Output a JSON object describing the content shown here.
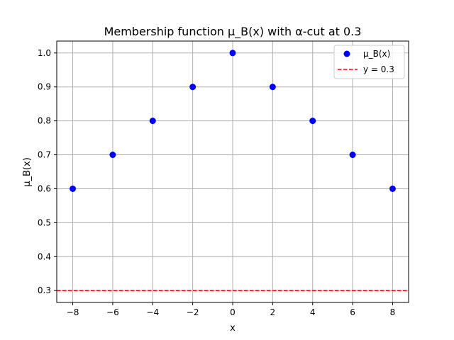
{
  "chart_data": {
    "type": "scatter",
    "title": "Membership function μ_B(x) with α-cut at 0.3",
    "xlabel": "x",
    "ylabel": "μ_B(x)",
    "xlim": [
      -8.8,
      8.8
    ],
    "ylim": [
      0.265,
      1.035
    ],
    "x_ticks": [
      -8,
      -6,
      -4,
      -2,
      0,
      2,
      4,
      6,
      8
    ],
    "x_tick_labels": [
      "−8",
      "−6",
      "−4",
      "−2",
      "0",
      "2",
      "4",
      "6",
      "8"
    ],
    "y_ticks": [
      0.3,
      0.4,
      0.5,
      0.6,
      0.7,
      0.8,
      0.9,
      1.0
    ],
    "y_tick_labels": [
      "0.3",
      "0.4",
      "0.5",
      "0.6",
      "0.7",
      "0.8",
      "0.9",
      "1.0"
    ],
    "grid": true,
    "legend_position": "top-right",
    "series": [
      {
        "name": "μ_B(x)",
        "kind": "scatter",
        "color": "#0000ff",
        "x": [
          -8,
          -6,
          -4,
          -2,
          0,
          2,
          4,
          6,
          8
        ],
        "y": [
          0.6,
          0.7,
          0.8,
          0.9,
          1.0,
          0.9,
          0.8,
          0.7,
          0.6
        ]
      },
      {
        "name": "y = 0.3",
        "kind": "hline",
        "color": "#ff0000",
        "linestyle": "dashed",
        "y": 0.3
      }
    ]
  }
}
